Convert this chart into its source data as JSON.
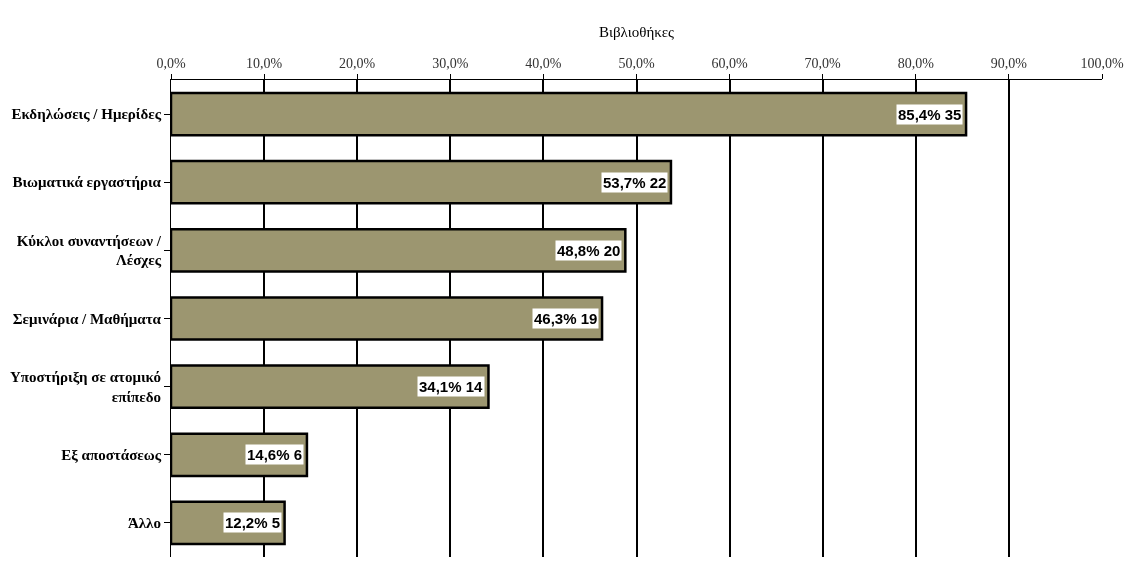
{
  "chart_data": {
    "type": "bar",
    "orientation": "horizontal",
    "xlabel": "Βιβλιοθήκες",
    "categories": [
      "Εκδηλώσεις / Ημερίδες",
      "Βιωματικά εργαστήρια",
      "Κύκλοι συναντήσεων /\nΛέσχες",
      "Σεμινάρια / Μαθήματα",
      "Υποστήριξη σε ατομικό\nεπίπεδο",
      "Εξ αποστάσεως",
      "Άλλο"
    ],
    "values": [
      85.4,
      53.7,
      48.8,
      46.3,
      34.1,
      14.6,
      12.2
    ],
    "value_labels": [
      "85,4% 35",
      "53,7% 22",
      "48,8% 20",
      "46,3% 19",
      "34,1% 14",
      "14,6% 6",
      "12,2% 5"
    ],
    "color": "#9c9670",
    "xlim": [
      0,
      100
    ],
    "xticks": [
      {
        "value": 0,
        "label": "0,0%"
      },
      {
        "value": 10,
        "label": "10,0%"
      },
      {
        "value": 20,
        "label": "20,0%"
      },
      {
        "value": 30,
        "label": "30,0%"
      },
      {
        "value": 40,
        "label": "40,0%"
      },
      {
        "value": 50,
        "label": "50,0%"
      },
      {
        "value": 60,
        "label": "60,0%"
      },
      {
        "value": 70,
        "label": "70,0%"
      },
      {
        "value": 80,
        "label": "80,0%"
      },
      {
        "value": 90,
        "label": "90,0%"
      },
      {
        "value": 100,
        "label": "100,0%"
      }
    ],
    "grid": "x",
    "legend": false
  }
}
